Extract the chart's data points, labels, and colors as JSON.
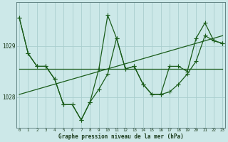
{
  "xlabel": "Graphe pression niveau de la mer (hPa)",
  "bg_color": "#cce8e8",
  "grid_color": "#aacece",
  "line_color": "#1a5c1a",
  "hours": [
    0,
    1,
    2,
    3,
    4,
    5,
    6,
    7,
    8,
    9,
    10,
    11,
    12,
    13,
    14,
    15,
    16,
    17,
    18,
    19,
    20,
    21,
    22,
    23
  ],
  "series_zigzag": [
    1029.55,
    1028.85,
    1028.6,
    1028.6,
    1028.35,
    1027.85,
    1027.85,
    1027.55,
    1027.9,
    1028.55,
    1029.6,
    1029.15,
    1028.55,
    1028.6,
    1028.25,
    1028.05,
    1028.05,
    1028.6,
    1028.6,
    1028.5,
    1029.15,
    1029.45,
    1029.1,
    1029.05
  ],
  "series_main": [
    1029.55,
    1028.85,
    1028.6,
    1028.6,
    1028.35,
    1027.85,
    1027.85,
    1027.55,
    1027.9,
    1028.15,
    1028.45,
    1029.15,
    1028.55,
    1028.6,
    1028.25,
    1028.05,
    1028.05,
    1028.1,
    1028.25,
    1028.45,
    1028.7,
    1029.2,
    1029.1,
    1029.05
  ],
  "series_trend": [
    1028.05,
    1028.1,
    1028.15,
    1028.2,
    1028.25,
    1028.3,
    1028.35,
    1028.4,
    1028.45,
    1028.5,
    1028.55,
    1028.6,
    1028.65,
    1028.7,
    1028.75,
    1028.8,
    1028.85,
    1028.9,
    1028.95,
    1029.0,
    1029.05,
    1029.1,
    1029.15,
    1029.2
  ],
  "series_flat": [
    1028.55,
    1028.55,
    1028.55,
    1028.55,
    1028.55,
    1028.55,
    1028.55,
    1028.55,
    1028.55,
    1028.55,
    1028.55,
    1028.55,
    1028.55,
    1028.55,
    1028.55,
    1028.55,
    1028.55,
    1028.55,
    1028.55,
    1028.55,
    1028.55,
    1028.55,
    1028.55,
    1028.55
  ],
  "ylim_min": 1027.4,
  "ylim_max": 1029.85,
  "yticks": [
    1028.0,
    1029.0
  ],
  "marker_size": 2.0,
  "line_width": 0.9
}
